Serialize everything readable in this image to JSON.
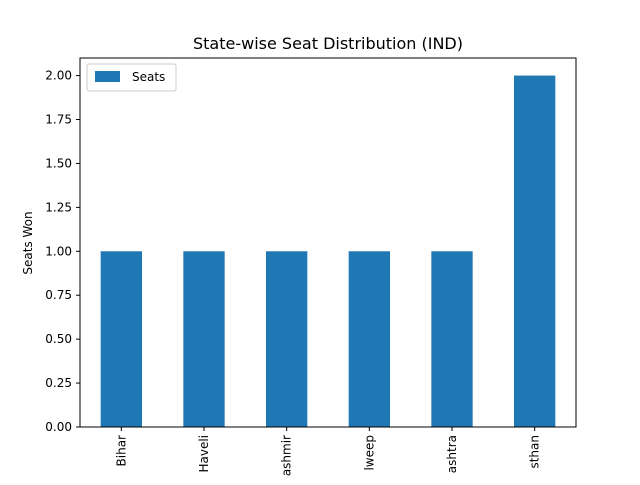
{
  "chart_data": {
    "type": "bar",
    "title": "State-wise Seat Distribution (IND)",
    "xlabel": "",
    "ylabel": "Seats Won",
    "categories": [
      "Bihar",
      "Haveli",
      "ashmir",
      "lweep",
      "ashtra",
      "sthan"
    ],
    "series": [
      {
        "name": "Seats",
        "values": [
          1,
          1,
          1,
          1,
          1,
          2
        ]
      }
    ],
    "yticks": [
      "0.00",
      "0.25",
      "0.50",
      "0.75",
      "1.00",
      "1.25",
      "1.50",
      "1.75",
      "2.00"
    ],
    "ylim": [
      0,
      2.1
    ],
    "grid": false,
    "legend": "top-left",
    "colors": {
      "bar": "#1f77b4"
    }
  }
}
